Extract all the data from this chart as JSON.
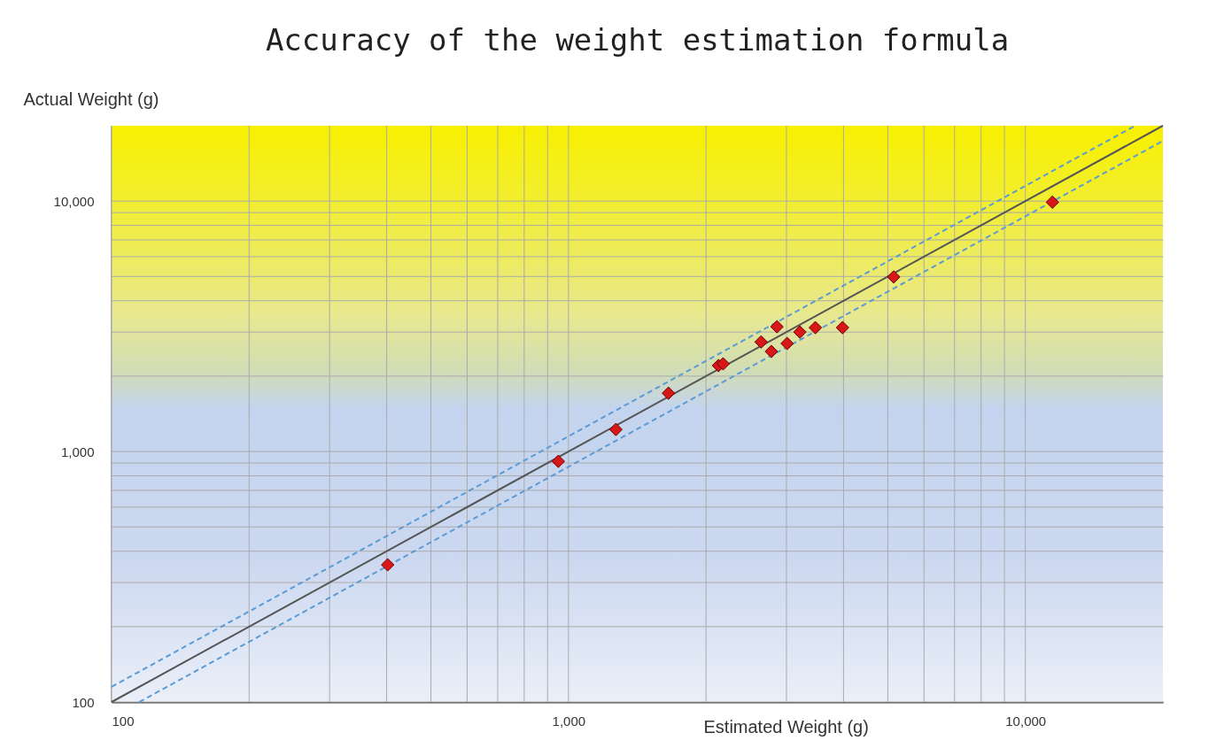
{
  "chart_data": {
    "type": "scatter",
    "title": "Accuracy of the weight estimation formula",
    "xlabel": "Estimated Weight (g)",
    "ylabel": "Actual Weight (g)",
    "log": "xy",
    "grid": true,
    "xlim": [
      100,
      20000
    ],
    "ylim": [
      100,
      20000
    ],
    "xticks": [
      100,
      {
        "value": 200,
        "label": null
      },
      {
        "value": 300,
        "label": null
      },
      {
        "value": 400,
        "label": null
      },
      {
        "value": 500,
        "label": null
      },
      {
        "value": 600,
        "label": null
      },
      {
        "value": 700,
        "label": null
      },
      {
        "value": 800,
        "label": null
      },
      {
        "value": 900,
        "label": null
      },
      {
        "value": 1000,
        "label": "1,000"
      },
      {
        "value": 2000,
        "label": null
      },
      {
        "value": 3000,
        "label": null
      },
      {
        "value": 4000,
        "label": null
      },
      {
        "value": 5000,
        "label": null
      },
      {
        "value": 6000,
        "label": null
      },
      {
        "value": 7000,
        "label": null
      },
      {
        "value": 8000,
        "label": null
      },
      {
        "value": 9000,
        "label": null
      },
      {
        "value": 10000,
        "label": "10,000"
      }
    ],
    "yticks": [
      100,
      {
        "value": 200,
        "label": null
      },
      {
        "value": 300,
        "label": null
      },
      {
        "value": 400,
        "label": null
      },
      {
        "value": 500,
        "label": null
      },
      {
        "value": 600,
        "label": null
      },
      {
        "value": 700,
        "label": null
      },
      {
        "value": 800,
        "label": null
      },
      {
        "value": 900,
        "label": null
      },
      {
        "value": 1000,
        "label": "1,000"
      },
      {
        "value": 2000,
        "label": null
      },
      {
        "value": 3000,
        "label": null
      },
      {
        "value": 4000,
        "label": null
      },
      {
        "value": 5000,
        "label": null
      },
      {
        "value": 6000,
        "label": null
      },
      {
        "value": 7000,
        "label": null
      },
      {
        "value": 8000,
        "label": null
      },
      {
        "value": 9000,
        "label": null
      },
      {
        "value": 10000,
        "label": "10,000"
      }
    ],
    "series": [
      {
        "type": "line",
        "color": "#555555",
        "line_style": "solid",
        "marker": "none",
        "x": [
          100,
          20000
        ],
        "values": [
          100,
          20000
        ]
      },
      {
        "type": "line",
        "color": "#5b9bd5",
        "line_style": "dashed",
        "marker": "none",
        "x": [
          100,
          17391
        ],
        "values": [
          115,
          20000
        ]
      },
      {
        "type": "line",
        "color": "#5b9bd5",
        "line_style": "dashed",
        "marker": "none",
        "x": [
          115,
          20000
        ],
        "values": [
          100,
          17391
        ]
      },
      {
        "color": "#d81818",
        "marker": "diamond",
        "x": [
          402,
          950,
          1270,
          1655,
          2130,
          2180,
          2640,
          2860,
          2780,
          3010,
          3210,
          3470,
          3980,
          5150,
          11460
        ],
        "values": [
          353,
          914,
          1225,
          1710,
          2205,
          2240,
          2740,
          3150,
          2510,
          2700,
          3000,
          3125,
          3125,
          4980,
          9900
        ]
      }
    ]
  }
}
